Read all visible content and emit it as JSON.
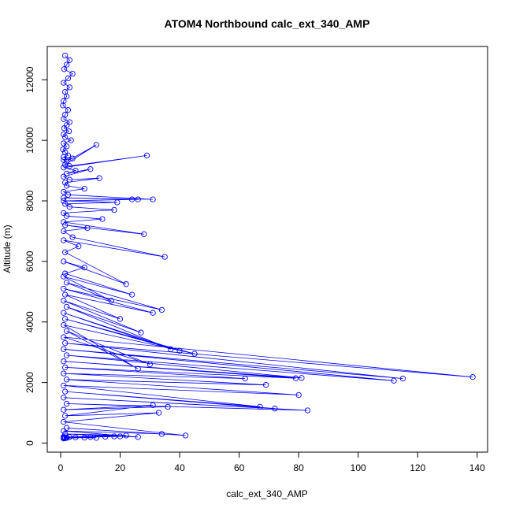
{
  "chart_data": {
    "type": "line",
    "title": "ATOM4 Northbound calc_ext_340_AMP",
    "xlabel": "calc_ext_340_AMP",
    "ylabel": "Altitude (m)",
    "xlim": [
      -4.5,
      143.5
    ],
    "ylim": [
      -300,
      13100
    ],
    "xticks": [
      0,
      20,
      40,
      60,
      80,
      100,
      120,
      140
    ],
    "yticks": [
      0,
      2000,
      4000,
      6000,
      8000,
      10000,
      12000
    ],
    "xtick_labels": [
      "0",
      "20",
      "40",
      "60",
      "80",
      "100",
      "120",
      "140"
    ],
    "ytick_labels": [
      "0",
      "2000",
      "4000",
      "6000",
      "8000",
      "10000",
      "12000"
    ],
    "grid": false,
    "series": [
      {
        "color": "#0000ff",
        "marker": "open-circle",
        "x": [
          1.5,
          3.0,
          2.0,
          1.2,
          4.0,
          2.5,
          1.0,
          3.0,
          1.5,
          2.0,
          1.0,
          0.8,
          2.5,
          1.5,
          1.0,
          3.0,
          2.0,
          1.2,
          2.8,
          1.0,
          1.5,
          3.5,
          1.0,
          2.0,
          0.8,
          1.5,
          2.5,
          1.0,
          4.0,
          1.0,
          2.0,
          12.0,
          1.5,
          3.0,
          29.0,
          1.0,
          5.0,
          2.0,
          10.0,
          1.0,
          3.0,
          13.0,
          1.5,
          2.0,
          8.0,
          1.0,
          2.5,
          31.0,
          1.0,
          24.0,
          26.0,
          1.0,
          19.0,
          1.5,
          3.0,
          18.0,
          1.0,
          2.0,
          14.0,
          1.0,
          28.0,
          1.5,
          9.0,
          1.0,
          4.0,
          35.0,
          1.0,
          6.0,
          1.5,
          22.0,
          1.0,
          8.0,
          1.5,
          24.0,
          1.0,
          17.0,
          2.0,
          34.0,
          1.0,
          31.0,
          1.5,
          20.0,
          1.0,
          27.0,
          2.0,
          37.0,
          1.0,
          40.0,
          1.5,
          45.0,
          1.0,
          26.0,
          2.0,
          30.0,
          1.0,
          138.5,
          1.5,
          115.0,
          1.0,
          112.0,
          2.0,
          81.0,
          1.0,
          79.0,
          1.5,
          62.0,
          1.0,
          69.0,
          2.0,
          80.0,
          1.0,
          67.0,
          1.5,
          72.0,
          1.0,
          83.0,
          2.0,
          36.0,
          1.0,
          31.0,
          1.5,
          33.0,
          1.0,
          42.0,
          2.0,
          34.0,
          1.0,
          26.0,
          1.5,
          22.0,
          1.0,
          18.0,
          2.0,
          12.0,
          1.0,
          8.0,
          1.5,
          3.0,
          1.0,
          5.0,
          2.0,
          10.0,
          1.0,
          15.0,
          1.5,
          20.0,
          1.0
        ],
        "y": [
          12800,
          12650,
          12500,
          12350,
          12200,
          12050,
          11900,
          11750,
          11600,
          11450,
          11300,
          11150,
          11000,
          10850,
          10700,
          10600,
          10500,
          10400,
          10300,
          10200,
          10100,
          10000,
          9900,
          9800,
          9700,
          9600,
          9500,
          9450,
          9400,
          9350,
          9300,
          9850,
          9200,
          9150,
          9500,
          9100,
          9000,
          8900,
          9050,
          8800,
          8700,
          8750,
          8600,
          8500,
          8400,
          8300,
          8200,
          8050,
          8100,
          8050,
          8050,
          8000,
          7950,
          7900,
          7800,
          7700,
          7600,
          7500,
          7400,
          7300,
          6900,
          7200,
          7100,
          7000,
          6800,
          6150,
          6700,
          6500,
          6300,
          5250,
          6000,
          5800,
          5600,
          4900,
          5500,
          4700,
          5300,
          4400,
          5100,
          4300,
          4900,
          4100,
          4700,
          3650,
          4500,
          3100,
          4300,
          3050,
          4100,
          2950,
          3900,
          2450,
          3700,
          2600,
          3500,
          2180,
          3300,
          2130,
          3100,
          2060,
          2900,
          2150,
          2700,
          2140,
          2500,
          2130,
          2300,
          1920,
          2100,
          1590,
          1900,
          1200,
          1700,
          1140,
          1500,
          1080,
          1300,
          1200,
          1100,
          1250,
          900,
          1000,
          700,
          250,
          500,
          300,
          400,
          200,
          300,
          250,
          200,
          220,
          180,
          170,
          200,
          180,
          160,
          200,
          150,
          190,
          170,
          200,
          160,
          210,
          180,
          220,
          170
        ]
      }
    ]
  }
}
